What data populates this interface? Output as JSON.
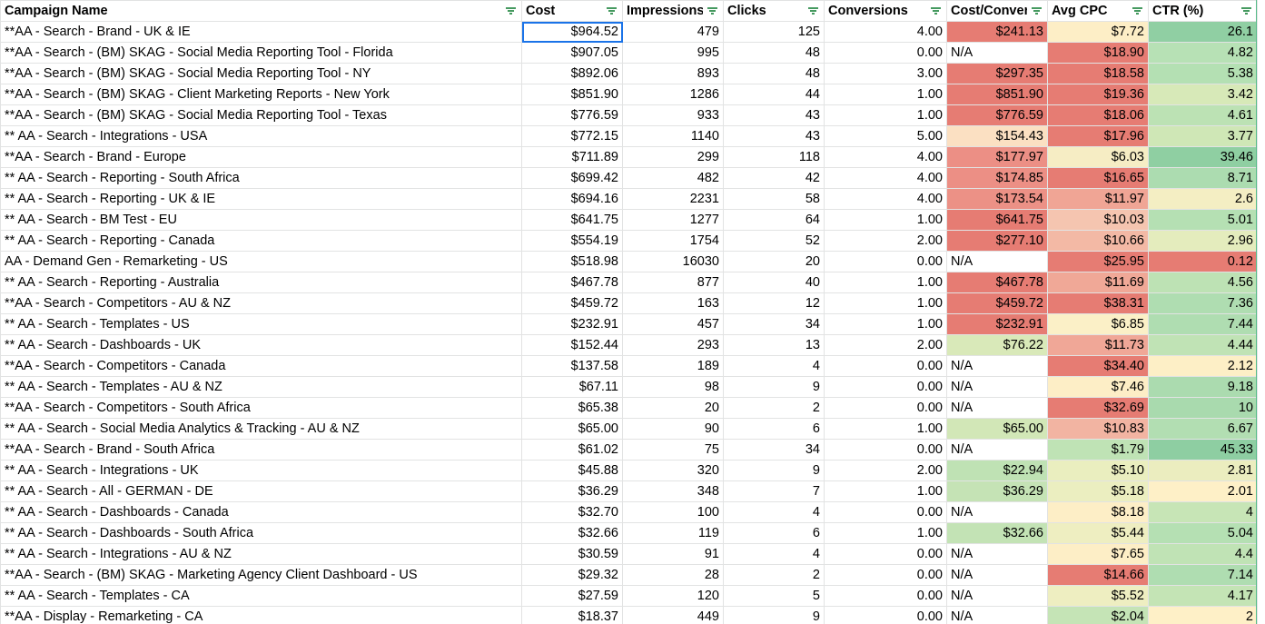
{
  "colors": {
    "grid_line": "#e2e3e3",
    "selection": "#1a73e8",
    "filter_icon": "#188038",
    "scale_red": "#e67c73",
    "scale_yellow": "#fff2cc",
    "scale_green": "#57bb8a"
  },
  "icons": {
    "filter": "filter-icon"
  },
  "selected_cell": {
    "row": 0,
    "column": "cost"
  },
  "headers": [
    {
      "key": "campaign",
      "label": "Campaign Name"
    },
    {
      "key": "cost",
      "label": "Cost"
    },
    {
      "key": "impressions",
      "label": "Impressions"
    },
    {
      "key": "clicks",
      "label": "Clicks"
    },
    {
      "key": "conversions",
      "label": "Conversions"
    },
    {
      "key": "cost_conv",
      "label": "Cost/Conversion"
    },
    {
      "key": "cpc",
      "label": "Avg CPC"
    },
    {
      "key": "ctr",
      "label": "CTR (%)"
    }
  ],
  "rows": [
    {
      "campaign": "**AA - Search - Brand - UK & IE",
      "cost": "$964.52",
      "impressions": "479",
      "clicks": "125",
      "conversions": "4.00",
      "cost_conv": "$241.13",
      "cpc": "$7.72",
      "ctr": "26.1",
      "cc_bg": "#e67c73",
      "cpc_bg": "#fdeec6",
      "ctr_bg": "#90cfa3"
    },
    {
      "campaign": "**AA - Search - (BM) SKAG - Social Media Reporting Tool - Florida",
      "cost": "$907.05",
      "impressions": "995",
      "clicks": "48",
      "conversions": "0.00",
      "cost_conv": "N/A",
      "cpc": "$18.90",
      "ctr": "4.82",
      "cc_bg": "#ffffff",
      "cpc_bg": "#e67c73",
      "ctr_bg": "#b7e1b5"
    },
    {
      "campaign": "**AA - Search - (BM) SKAG - Social Media Reporting Tool  - NY",
      "cost": "$892.06",
      "impressions": "893",
      "clicks": "48",
      "conversions": "3.00",
      "cost_conv": "$297.35",
      "cpc": "$18.58",
      "ctr": "5.38",
      "cc_bg": "#e67c73",
      "cpc_bg": "#e67c73",
      "ctr_bg": "#b4e0b3"
    },
    {
      "campaign": "**AA - Search - (BM) SKAG - Client Marketing Reports - New York",
      "cost": "$851.90",
      "impressions": "1286",
      "clicks": "44",
      "conversions": "1.00",
      "cost_conv": "$851.90",
      "cpc": "$19.36",
      "ctr": "3.42",
      "cc_bg": "#e67c73",
      "cpc_bg": "#e67c73",
      "ctr_bg": "#d7e9b8"
    },
    {
      "campaign": "**AA - Search - (BM) SKAG - Social Media Reporting Tool - Texas",
      "cost": "$776.59",
      "impressions": "933",
      "clicks": "43",
      "conversions": "1.00",
      "cost_conv": "$776.59",
      "cpc": "$18.06",
      "ctr": "4.61",
      "cc_bg": "#e67c73",
      "cpc_bg": "#e67c73",
      "ctr_bg": "#bce2b4"
    },
    {
      "campaign": "** AA - Search - Integrations - USA",
      "cost": "$772.15",
      "impressions": "1140",
      "clicks": "43",
      "conversions": "5.00",
      "cost_conv": "$154.43",
      "cpc": "$17.96",
      "ctr": "3.77",
      "cc_bg": "#fbe0c2",
      "cpc_bg": "#e67c73",
      "ctr_bg": "#cfe7b6"
    },
    {
      "campaign": "**AA - Search - Brand - Europe",
      "cost": "$711.89",
      "impressions": "299",
      "clicks": "118",
      "conversions": "4.00",
      "cost_conv": "$177.97",
      "cpc": "$6.03",
      "ctr": "39.46",
      "cc_bg": "#ec8f85",
      "cpc_bg": "#f6edc4",
      "ctr_bg": "#8fcfa2"
    },
    {
      "campaign": "** AA - Search - Reporting - South Africa",
      "cost": "$699.42",
      "impressions": "482",
      "clicks": "42",
      "conversions": "4.00",
      "cost_conv": "$174.85",
      "cpc": "$16.65",
      "ctr": "8.71",
      "cc_bg": "#ec8f85",
      "cpc_bg": "#e67c73",
      "ctr_bg": "#acdcb0"
    },
    {
      "campaign": "** AA - Search - Reporting - UK & IE",
      "cost": "$694.16",
      "impressions": "2231",
      "clicks": "58",
      "conversions": "4.00",
      "cost_conv": "$173.54",
      "cpc": "$11.97",
      "ctr": "2.6",
      "cc_bg": "#ec9186",
      "cpc_bg": "#f0a595",
      "ctr_bg": "#f4eec3"
    },
    {
      "campaign": "** AA - Search - BM Test - EU",
      "cost": "$641.75",
      "impressions": "1277",
      "clicks": "64",
      "conversions": "1.00",
      "cost_conv": "$641.75",
      "cpc": "$10.03",
      "ctr": "5.01",
      "cc_bg": "#e67c73",
      "cpc_bg": "#f5c5b0",
      "ctr_bg": "#b5e0b3"
    },
    {
      "campaign": "** AA - Search - Reporting - Canada",
      "cost": "$554.19",
      "impressions": "1754",
      "clicks": "52",
      "conversions": "2.00",
      "cost_conv": "$277.10",
      "cpc": "$10.66",
      "ctr": "2.96",
      "cc_bg": "#e67c73",
      "cpc_bg": "#f3b9a5",
      "ctr_bg": "#e4ecbd"
    },
    {
      "campaign": "AA - Demand Gen  - Remarketing - US",
      "cost": "$518.98",
      "impressions": "16030",
      "clicks": "20",
      "conversions": "0.00",
      "cost_conv": "N/A",
      "cpc": "$25.95",
      "ctr": "0.12",
      "cc_bg": "#ffffff",
      "cpc_bg": "#e67c73",
      "ctr_bg": "#e67c73"
    },
    {
      "campaign": "** AA - Search - Reporting - Australia",
      "cost": "$467.78",
      "impressions": "877",
      "clicks": "40",
      "conversions": "1.00",
      "cost_conv": "$467.78",
      "cpc": "$11.69",
      "ctr": "4.56",
      "cc_bg": "#e67c73",
      "cpc_bg": "#f0a897",
      "ctr_bg": "#bde2b4"
    },
    {
      "campaign": "**AA - Search - Competitors - AU & NZ",
      "cost": "$459.72",
      "impressions": "163",
      "clicks": "12",
      "conversions": "1.00",
      "cost_conv": "$459.72",
      "cpc": "$38.31",
      "ctr": "7.36",
      "cc_bg": "#e67c73",
      "cpc_bg": "#e67c73",
      "ctr_bg": "#afddb1"
    },
    {
      "campaign": "** AA - Search - Templates - US",
      "cost": "$232.91",
      "impressions": "457",
      "clicks": "34",
      "conversions": "1.00",
      "cost_conv": "$232.91",
      "cpc": "$6.85",
      "ctr": "7.44",
      "cc_bg": "#e67c73",
      "cpc_bg": "#fbf0c7",
      "ctr_bg": "#afddb1"
    },
    {
      "campaign": "** AA - Search - Dashboards - UK",
      "cost": "$152.44",
      "impressions": "293",
      "clicks": "13",
      "conversions": "2.00",
      "cost_conv": "$76.22",
      "cpc": "$11.73",
      "ctr": "4.44",
      "cc_bg": "#d9e9b9",
      "cpc_bg": "#f0a797",
      "ctr_bg": "#c0e3b5"
    },
    {
      "campaign": "**AA - Search - Competitors - Canada",
      "cost": "$137.58",
      "impressions": "189",
      "clicks": "4",
      "conversions": "0.00",
      "cost_conv": "N/A",
      "cpc": "$34.40",
      "ctr": "2.12",
      "cc_bg": "#ffffff",
      "cpc_bg": "#e67c73",
      "ctr_bg": "#fdefc6"
    },
    {
      "campaign": "** AA - Search - Templates - AU & NZ",
      "cost": "$67.11",
      "impressions": "98",
      "clicks": "9",
      "conversions": "0.00",
      "cost_conv": "N/A",
      "cpc": "$7.46",
      "ctr": "9.18",
      "cc_bg": "#ffffff",
      "cpc_bg": "#fdeec6",
      "ctr_bg": "#abdbaf"
    },
    {
      "campaign": "**AA - Search - Competitors - South Africa",
      "cost": "$65.38",
      "impressions": "20",
      "clicks": "2",
      "conversions": "0.00",
      "cost_conv": "N/A",
      "cpc": "$32.69",
      "ctr": "10",
      "cc_bg": "#ffffff",
      "cpc_bg": "#e67c73",
      "ctr_bg": "#a9daae"
    },
    {
      "campaign": "** AA - Search - Social Media Analytics & Tracking - AU & NZ",
      "cost": "$65.00",
      "impressions": "90",
      "clicks": "6",
      "conversions": "1.00",
      "cost_conv": "$65.00",
      "cpc": "$10.83",
      "ctr": "6.67",
      "cc_bg": "#d2e7b7",
      "cpc_bg": "#f2b4a2",
      "ctr_bg": "#b2deb2"
    },
    {
      "campaign": "**AA - Search - Brand - South Africa",
      "cost": "$61.02",
      "impressions": "75",
      "clicks": "34",
      "conversions": "0.00",
      "cost_conv": "N/A",
      "cpc": "$1.79",
      "ctr": "45.33",
      "cc_bg": "#ffffff",
      "cpc_bg": "#bfe3b5",
      "ctr_bg": "#8ecea2"
    },
    {
      "campaign": "** AA - Search - Integrations - UK",
      "cost": "$45.88",
      "impressions": "320",
      "clicks": "9",
      "conversions": "2.00",
      "cost_conv": "$22.94",
      "cpc": "$5.10",
      "ctr": "2.81",
      "cc_bg": "#bfe2b4",
      "cpc_bg": "#eaeebf",
      "ctr_bg": "#ebedbf"
    },
    {
      "campaign": "** AA - Search - All - GERMAN - DE",
      "cost": "$36.29",
      "impressions": "348",
      "clicks": "7",
      "conversions": "1.00",
      "cost_conv": "$36.29",
      "cpc": "$5.18",
      "ctr": "2.01",
      "cc_bg": "#c5e3b5",
      "cpc_bg": "#ebeec0",
      "ctr_bg": "#fef0c7"
    },
    {
      "campaign": "** AA - Search - Dashboards - Canada",
      "cost": "$32.70",
      "impressions": "100",
      "clicks": "4",
      "conversions": "0.00",
      "cost_conv": "N/A",
      "cpc": "$8.18",
      "ctr": "4",
      "cc_bg": "#ffffff",
      "cpc_bg": "#fdeec6",
      "ctr_bg": "#c7e5b6"
    },
    {
      "campaign": "** AA - Search - Dashboards - South Africa",
      "cost": "$32.66",
      "impressions": "119",
      "clicks": "6",
      "conversions": "1.00",
      "cost_conv": "$32.66",
      "cpc": "$5.44",
      "ctr": "5.04",
      "cc_bg": "#c3e3b5",
      "cpc_bg": "#eeeec1",
      "ctr_bg": "#b5e0b3"
    },
    {
      "campaign": "** AA - Search - Integrations - AU & NZ",
      "cost": "$30.59",
      "impressions": "91",
      "clicks": "4",
      "conversions": "0.00",
      "cost_conv": "N/A",
      "cpc": "$7.65",
      "ctr": "4.4",
      "cc_bg": "#ffffff",
      "cpc_bg": "#fdeec6",
      "ctr_bg": "#c0e3b5"
    },
    {
      "campaign": "**AA - Search - (BM) SKAG - Marketing Agency Client Dashboard - US",
      "cost": "$29.32",
      "impressions": "28",
      "clicks": "2",
      "conversions": "0.00",
      "cost_conv": "N/A",
      "cpc": "$14.66",
      "ctr": "7.14",
      "cc_bg": "#ffffff",
      "cpc_bg": "#e67c73",
      "ctr_bg": "#afddb1"
    },
    {
      "campaign": "** AA - Search - Templates - CA",
      "cost": "$27.59",
      "impressions": "120",
      "clicks": "5",
      "conversions": "0.00",
      "cost_conv": "N/A",
      "cpc": "$5.52",
      "ctr": "4.17",
      "cc_bg": "#ffffff",
      "cpc_bg": "#eeeec1",
      "ctr_bg": "#c4e4b5"
    },
    {
      "campaign": "**AA - Display - Remarketing - CA",
      "cost": "$18.37",
      "impressions": "449",
      "clicks": "9",
      "conversions": "0.00",
      "cost_conv": "N/A",
      "cpc": "$2.04",
      "ctr": "2",
      "cc_bg": "#ffffff",
      "cpc_bg": "#c5e4b6",
      "ctr_bg": "#fef0c7"
    }
  ]
}
